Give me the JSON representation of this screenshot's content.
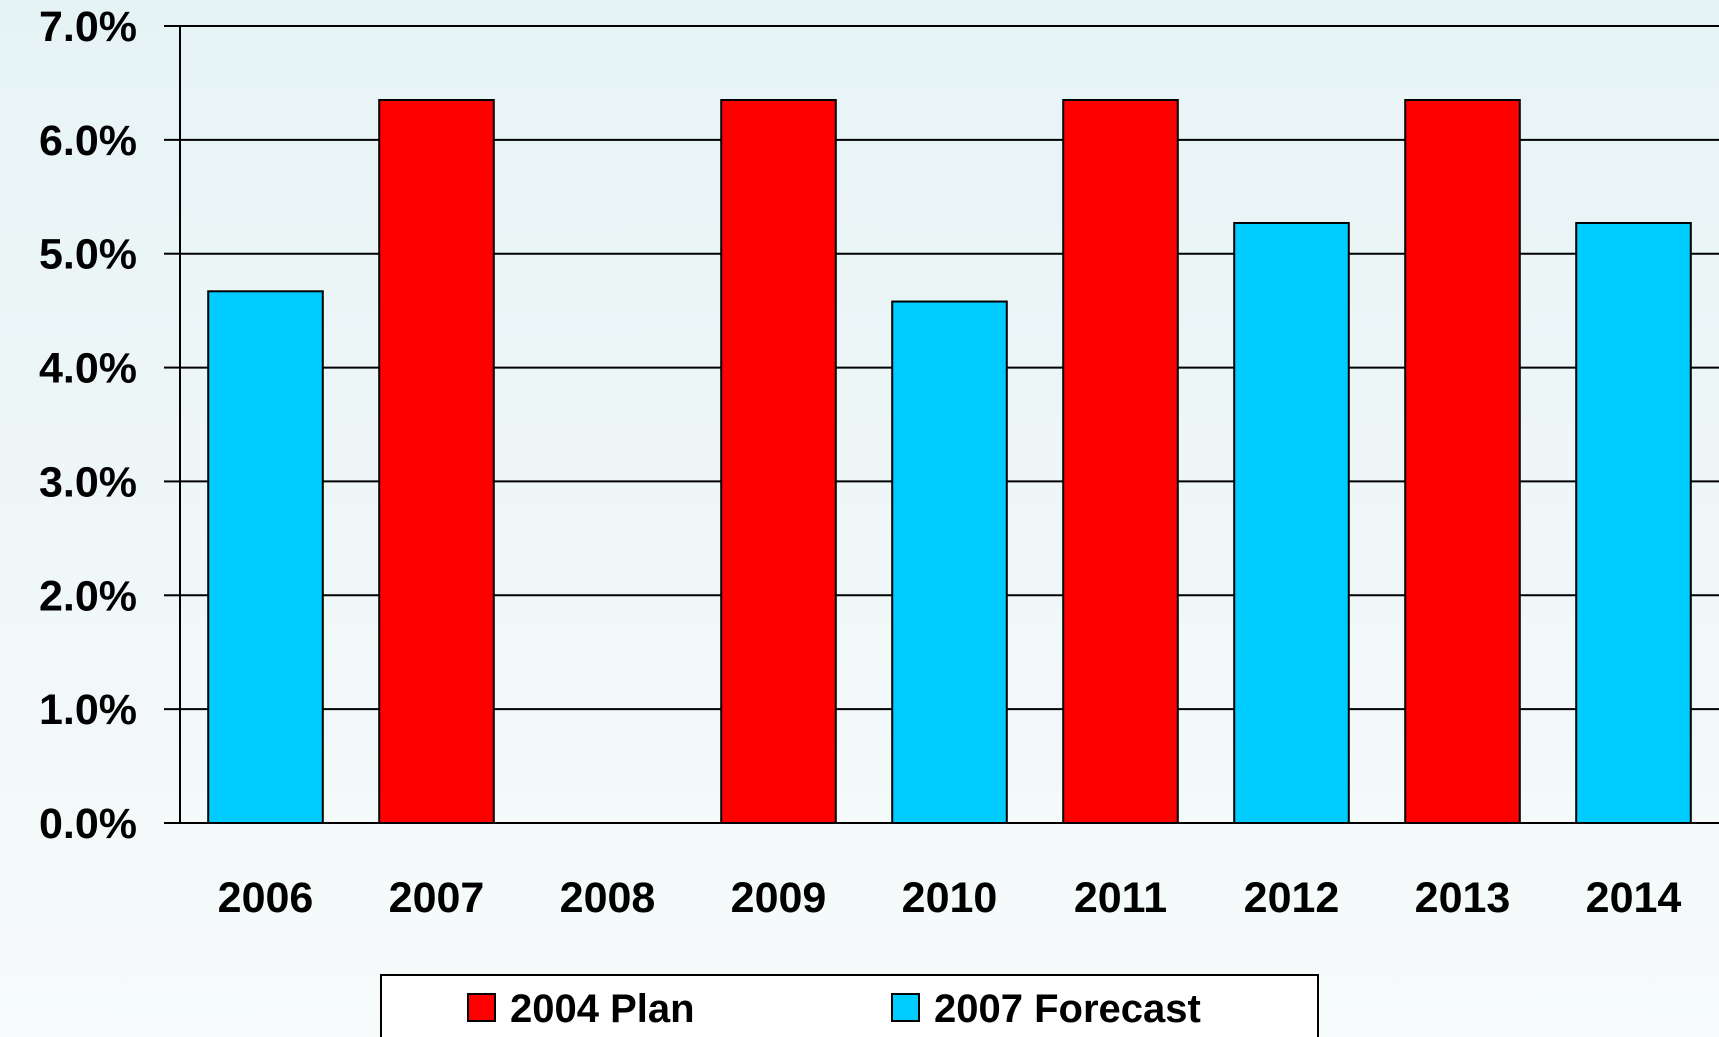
{
  "chart_data": {
    "type": "bar",
    "categories": [
      "2006",
      "2007",
      "2008",
      "2009",
      "2010",
      "2011",
      "2012",
      "2013",
      "2014"
    ],
    "series": [
      {
        "name": "2004 Plan",
        "color": "#ff0000",
        "values": [
          null,
          6.35,
          null,
          6.35,
          null,
          6.35,
          null,
          6.35,
          null
        ]
      },
      {
        "name": "2007 Forecast",
        "color": "#00ccff",
        "values": [
          4.67,
          null,
          null,
          null,
          4.58,
          null,
          5.27,
          null,
          5.27
        ]
      }
    ],
    "title": "",
    "xlabel": "",
    "ylabel": "",
    "ylim": [
      0,
      7
    ],
    "y_ticks": [
      "0.0%",
      "1.0%",
      "2.0%",
      "3.0%",
      "4.0%",
      "5.0%",
      "6.0%",
      "7.0%"
    ],
    "grid": true,
    "legend": "bottom"
  }
}
